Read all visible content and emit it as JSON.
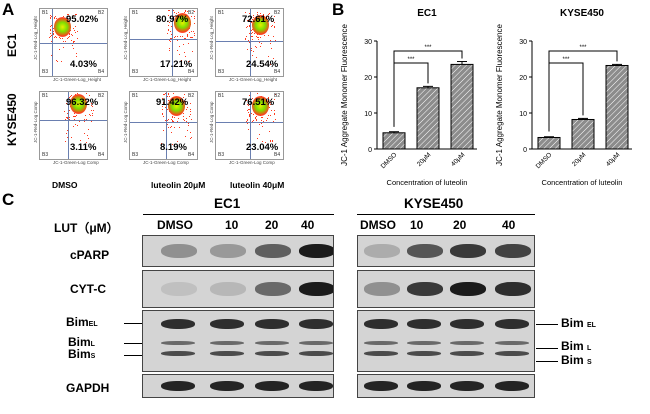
{
  "panels": {
    "a": "A",
    "b": "B",
    "c": "C"
  },
  "flow": {
    "rows": [
      "EC1",
      "KYSE450"
    ],
    "conditions": [
      "DMSO",
      "luteolin 20μM",
      "luteolin 40μM"
    ],
    "plots": [
      {
        "upper_right": "95.02%",
        "lower_right": "4.03%"
      },
      {
        "upper_right": "80.97%",
        "lower_right": "17.21%"
      },
      {
        "upper_right": "72.61%",
        "lower_right": "24.54%"
      },
      {
        "upper_right": "96.32%",
        "lower_right": "3.11%"
      },
      {
        "upper_right": "91.42%",
        "lower_right": "8.19%"
      },
      {
        "upper_right": "76.51%",
        "lower_right": "23.04%"
      }
    ],
    "quadrants": [
      "B1",
      "B2",
      "B3",
      "B4"
    ],
    "axis_x_label": "JC-1-Green-Log_Height",
    "axis_y_label": "JC-1-Red-Log_Height",
    "axis_x_label_2": "JC-1-Green-Log Comp",
    "axis_y_label_2": "JC-1-Red-Log Comp"
  },
  "chart_data": [
    {
      "type": "bar",
      "title": "EC1",
      "categories": [
        "DMSO",
        "20μM",
        "40μM"
      ],
      "values": [
        4.5,
        17,
        23.5
      ],
      "errors": [
        0.3,
        0.4,
        0.8
      ],
      "ylim": [
        0,
        30
      ],
      "yticks": [
        "0",
        "10",
        "20",
        "30"
      ],
      "xlabel": "Concentration of luteolin",
      "ylabel": "JC-1 Aggregate Monomer Fluorescence",
      "significance": [
        "***",
        "***"
      ]
    },
    {
      "type": "bar",
      "title": "KYSE450",
      "categories": [
        "DMSO",
        "20μM",
        "40μM"
      ],
      "values": [
        3.2,
        8.2,
        23.2
      ],
      "errors": [
        0.2,
        0.3,
        0.3
      ],
      "ylim": [
        0,
        30
      ],
      "yticks": [
        "0",
        "10",
        "20",
        "30"
      ],
      "xlabel": "Concentration of luteolin",
      "ylabel": "JC-1 Aggregate Monomer Fluorescence",
      "significance": [
        "***",
        "***"
      ]
    }
  ],
  "blot": {
    "treatment_label": "LUT（μM）",
    "cell_lines": [
      "EC1",
      "KYSE450"
    ],
    "lanes": [
      "DMSO",
      "10",
      "20",
      "40"
    ],
    "proteins": {
      "cparp": "cPARP",
      "cytc": "CYT-C",
      "bim": "Bim",
      "bim_el_sub": "EL",
      "bim_l_sub": "L",
      "bim_s_sub": "S",
      "gapdh": "GAPDH"
    }
  },
  "colors": {
    "bar_fill": "#8c8c8c",
    "cloud_hot": "#e8f000",
    "cloud_mid": "#ff3b1f",
    "gate": "#6a7fb0"
  }
}
